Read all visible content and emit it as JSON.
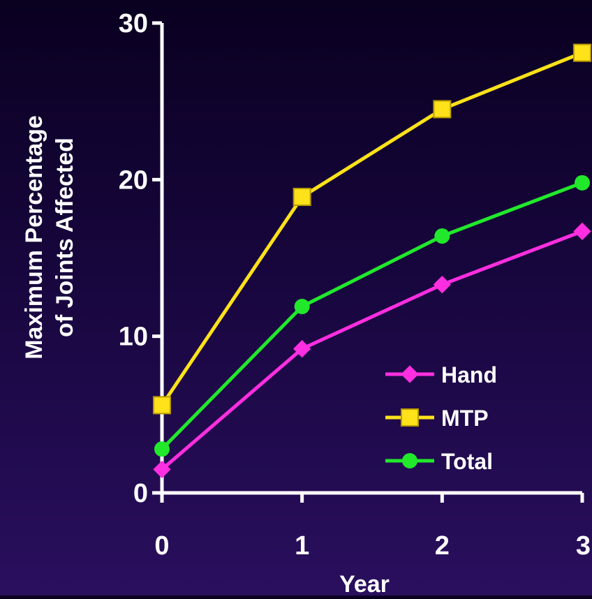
{
  "chart_data": {
    "type": "line",
    "title": "",
    "xlabel": "Year",
    "ylabel": [
      "Maximum Percentage",
      "of Joints Affected"
    ],
    "x": [
      0,
      1,
      2,
      3
    ],
    "x_tick_labels": [
      "0",
      "1",
      "2",
      "3"
    ],
    "y_ticks": [
      0,
      10,
      20,
      30
    ],
    "y_tick_labels": [
      "0",
      "10",
      "20",
      "30"
    ],
    "xlim": [
      0,
      3
    ],
    "ylim": [
      0,
      30
    ],
    "grid": false,
    "legend_position": "bottom-right",
    "series": [
      {
        "name": "Hand",
        "values": [
          1.5,
          9.2,
          13.3,
          16.7
        ],
        "color": "#ff2ee0",
        "marker": "diamond"
      },
      {
        "name": "MTP",
        "values": [
          5.6,
          18.9,
          24.5,
          28.1
        ],
        "color": "#ffe21a",
        "marker": "square"
      },
      {
        "name": "Total",
        "values": [
          2.8,
          11.9,
          16.4,
          19.8
        ],
        "color": "#22e82c",
        "marker": "circle"
      }
    ],
    "axis_color": "#ffffff"
  }
}
